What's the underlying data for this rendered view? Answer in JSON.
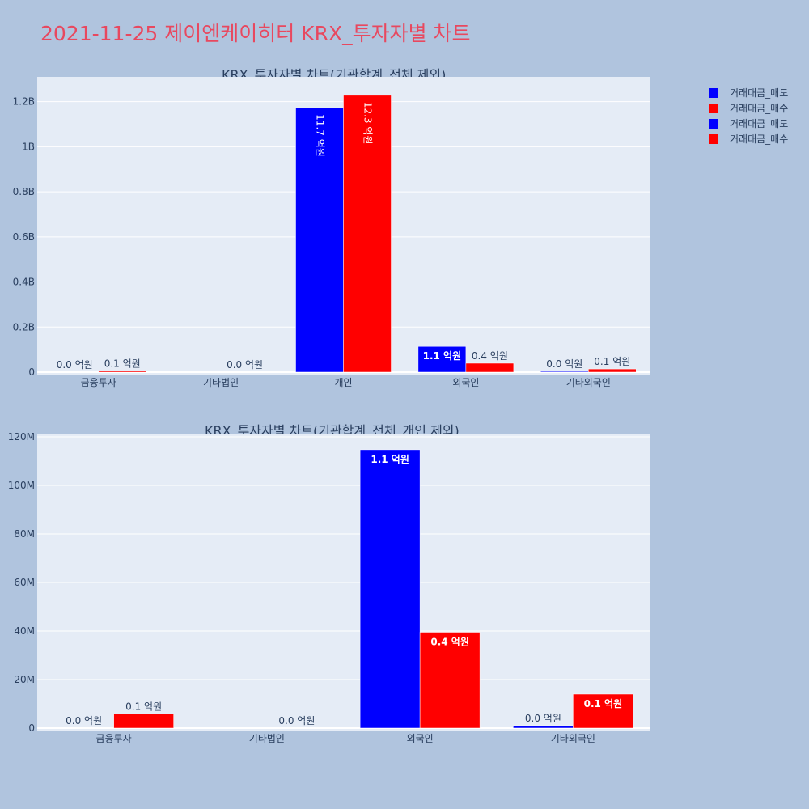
{
  "title": "2021-11-25 제이엔케이히터 KRX_투자자별 차트",
  "colors": {
    "sell": "#0000ff",
    "buy": "#ff0000",
    "title": "#e8485f"
  },
  "legend": [
    {
      "label": "거래대금_매도",
      "color": "#0000ff"
    },
    {
      "label": "거래대금_매수",
      "color": "#ff0000"
    },
    {
      "label": "거래대금_매도",
      "color": "#0000ff"
    },
    {
      "label": "거래대금_매수",
      "color": "#ff0000"
    }
  ],
  "chart_data": [
    {
      "type": "bar",
      "title": "KRX_투자자별 차트(기관합계_전체 제외)",
      "categories": [
        "금융투자",
        "기타법인",
        "개인",
        "외국인",
        "기타외국인"
      ],
      "series": [
        {
          "name": "거래대금_매도",
          "color": "#0000ff",
          "values": [
            0,
            0,
            1173000000,
            114000000,
            1000000
          ],
          "labels": [
            "0.0 억원",
            "",
            "11.7 억원",
            "1.1 억원",
            "0.0 억원"
          ]
        },
        {
          "name": "거래대금_매수",
          "color": "#ff0000",
          "values": [
            6000000,
            0,
            1228000000,
            39500000,
            14000000
          ],
          "labels": [
            "0.1 억원",
            "0.0 억원",
            "12.3 억원",
            "0.4 억원",
            "0.1 억원"
          ]
        }
      ],
      "yticks": [
        "0",
        "0.2B",
        "0.4B",
        "0.6B",
        "0.8B",
        "1B",
        "1.2B"
      ],
      "ylim": [
        0,
        1310000000
      ],
      "grid": true
    },
    {
      "type": "bar",
      "title": "KRX_투자자별 차트(기관합계_전체_개인 제외)",
      "categories": [
        "금융투자",
        "기타법인",
        "외국인",
        "기타외국인"
      ],
      "series": [
        {
          "name": "거래대금_매도",
          "color": "#0000ff",
          "values": [
            0,
            0,
            114700000,
            1000000
          ],
          "labels": [
            "0.0 억원",
            "",
            "1.1 억원",
            "0.0 억원"
          ]
        },
        {
          "name": "거래대금_매수",
          "color": "#ff0000",
          "values": [
            5900000,
            0,
            39500000,
            14000000
          ],
          "labels": [
            "0.1 억원",
            "0.0 억원",
            "0.4 억원",
            "0.1 억원"
          ]
        }
      ],
      "yticks": [
        "0",
        "20M",
        "40M",
        "60M",
        "80M",
        "100M",
        "120M"
      ],
      "ylim": [
        0,
        121000000
      ],
      "grid": true
    }
  ]
}
